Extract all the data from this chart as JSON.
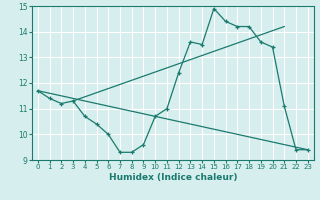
{
  "line1_x": [
    0,
    1,
    2,
    3,
    4,
    5,
    6,
    7,
    8,
    9,
    10,
    11,
    12,
    13,
    14,
    15,
    16,
    17,
    18,
    19,
    20,
    21,
    22,
    23
  ],
  "line1_y": [
    11.7,
    11.4,
    11.2,
    11.3,
    10.7,
    10.4,
    10.0,
    9.3,
    9.3,
    9.6,
    10.7,
    11.0,
    12.4,
    13.6,
    13.5,
    14.9,
    14.4,
    14.2,
    14.2,
    13.6,
    13.4,
    11.1,
    9.4,
    9.4
  ],
  "line2_x": [
    3,
    21
  ],
  "line2_y": [
    11.3,
    14.2
  ],
  "line3_x": [
    0,
    23
  ],
  "line3_y": [
    11.7,
    9.4
  ],
  "color": "#1a7a6e",
  "bg_color": "#d6eeee",
  "grid_color": "#ffffff",
  "xlabel": "Humidex (Indice chaleur)",
  "xlim": [
    -0.5,
    23.5
  ],
  "ylim": [
    9,
    15
  ],
  "yticks": [
    9,
    10,
    11,
    12,
    13,
    14,
    15
  ],
  "xticks": [
    0,
    1,
    2,
    3,
    4,
    5,
    6,
    7,
    8,
    9,
    10,
    11,
    12,
    13,
    14,
    15,
    16,
    17,
    18,
    19,
    20,
    21,
    22,
    23
  ]
}
